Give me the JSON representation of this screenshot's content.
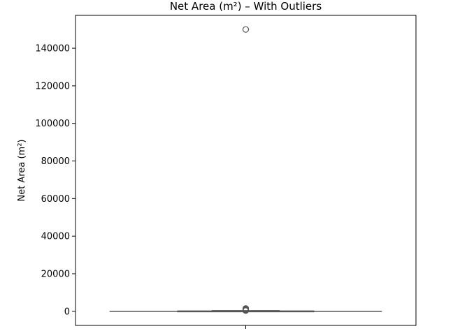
{
  "chart_data": {
    "type": "box",
    "title": "Net Area (m²) – With Outliers",
    "xlabel": "",
    "ylabel": "Net Area (m²)",
    "ylim": [
      -7500,
      157500
    ],
    "yticks": [
      0,
      20000,
      40000,
      60000,
      80000,
      100000,
      120000,
      140000
    ],
    "ytick_labels": [
      "0",
      "20000",
      "40000",
      "60000",
      "80000",
      "100000",
      "120000",
      "140000"
    ],
    "grid": false,
    "box": {
      "whisker_low": 0,
      "q1": 20,
      "median": 60,
      "q3": 150,
      "whisker_high": 350,
      "outliers": [
        150000,
        1500,
        1200,
        1000,
        800,
        600,
        400
      ]
    },
    "colors": {
      "box_edge": "#555555",
      "outlier_edge": "#555555"
    }
  }
}
